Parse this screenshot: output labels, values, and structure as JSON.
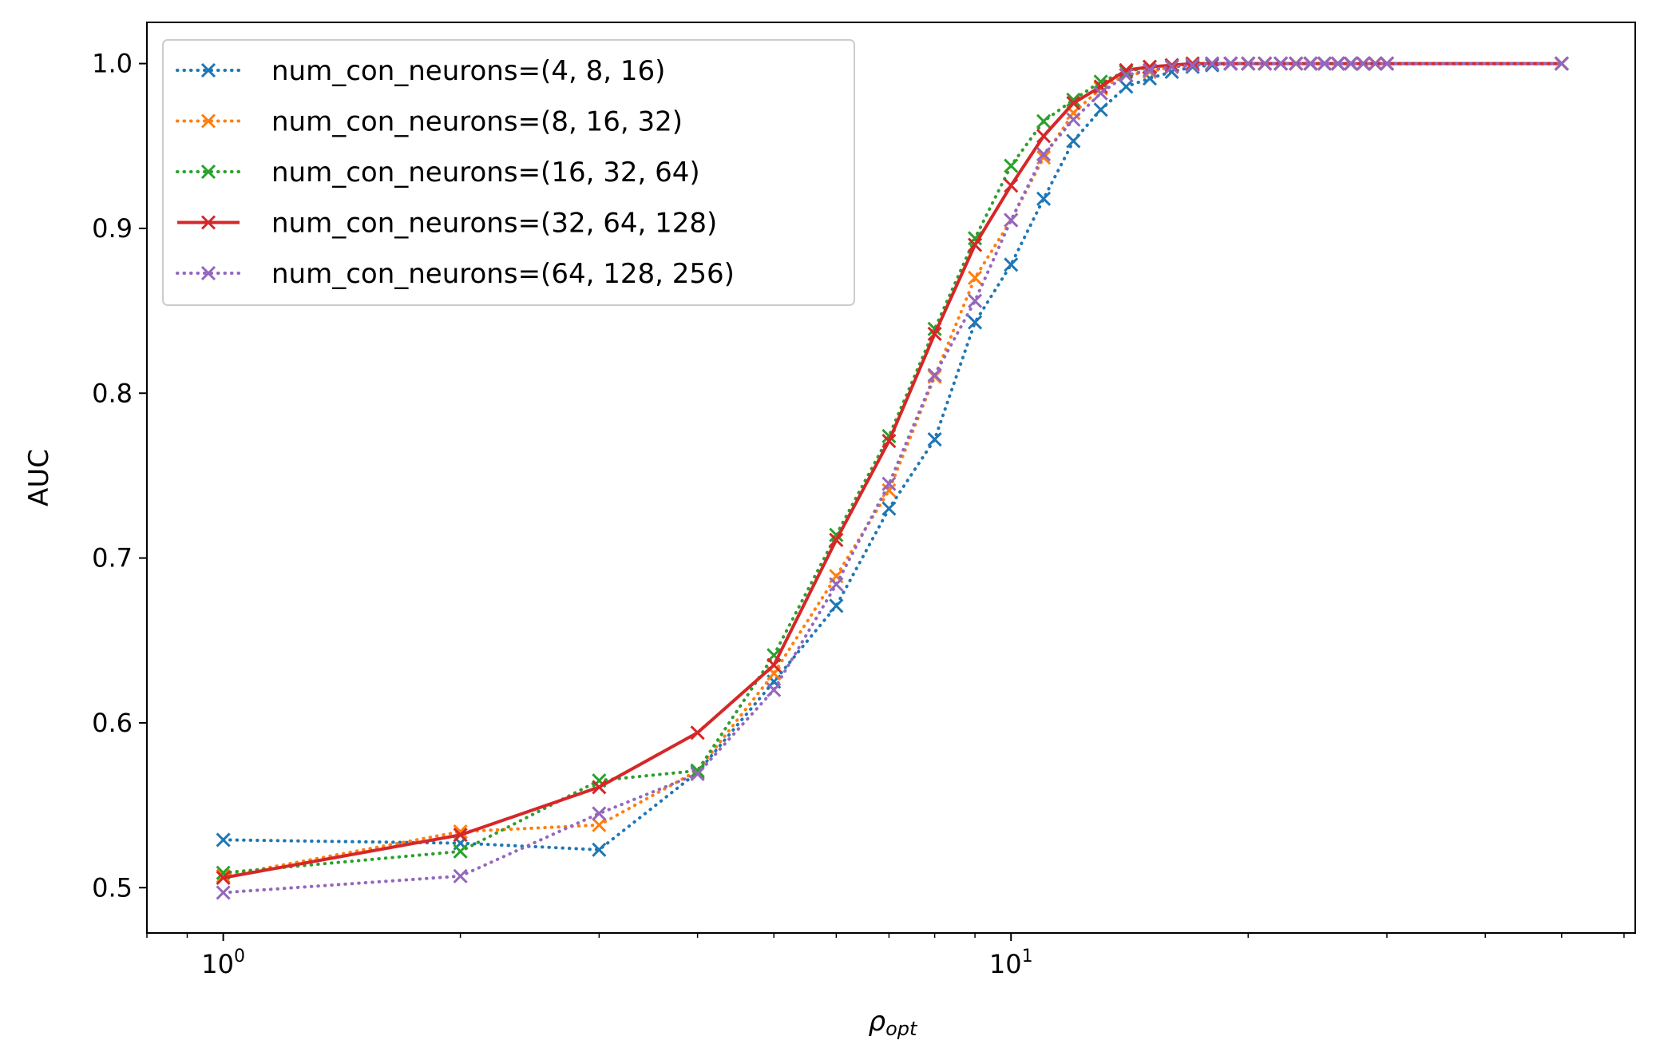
{
  "chart_data": {
    "type": "line",
    "x_scale": "log",
    "xlim": [
      0.8,
      62
    ],
    "ylim": [
      0.4725,
      1.025
    ],
    "xlabel": "ρ",
    "xlabel_subscript": "opt",
    "ylabel": "AUC",
    "x_ticks": [
      {
        "value": 1,
        "base": "10",
        "exp": "0"
      },
      {
        "value": 10,
        "base": "10",
        "exp": "1"
      }
    ],
    "y_ticks": [
      {
        "value": 0.5,
        "label": "0.5"
      },
      {
        "value": 0.6,
        "label": "0.6"
      },
      {
        "value": 0.7,
        "label": "0.7"
      },
      {
        "value": 0.8,
        "label": "0.8"
      },
      {
        "value": 0.9,
        "label": "0.9"
      },
      {
        "value": 1.0,
        "label": "1.0"
      }
    ],
    "grid": false,
    "legend_position": "top-left",
    "series": [
      {
        "name": "num_con_neurons=(4, 8, 16)",
        "color": "#1f77b4",
        "linestyle": "dotted",
        "marker": "x",
        "x": [
          1,
          2,
          3,
          4,
          5,
          6,
          7,
          8,
          9,
          10,
          11,
          12,
          13,
          14,
          15,
          16,
          17,
          18,
          19,
          20,
          21,
          22,
          23,
          24,
          25,
          26,
          27,
          28,
          29,
          30,
          50
        ],
        "y": [
          0.529,
          0.527,
          0.523,
          0.57,
          0.625,
          0.671,
          0.73,
          0.772,
          0.843,
          0.878,
          0.918,
          0.953,
          0.972,
          0.986,
          0.991,
          0.995,
          0.998,
          0.999,
          1.0,
          1.0,
          1.0,
          1.0,
          1.0,
          1.0,
          1.0,
          1.0,
          1.0,
          1.0,
          1.0,
          1.0,
          1.0
        ]
      },
      {
        "name": "num_con_neurons=(8, 16, 32)",
        "color": "#ff7f0e",
        "linestyle": "dotted",
        "marker": "x",
        "x": [
          1,
          2,
          3,
          4,
          5,
          6,
          7,
          8,
          9,
          10,
          11,
          12,
          13,
          14,
          15,
          16,
          17,
          18,
          19,
          20,
          21,
          22,
          23,
          24,
          25,
          26,
          27,
          28,
          29,
          30,
          50
        ],
        "y": [
          0.507,
          0.534,
          0.538,
          0.571,
          0.63,
          0.689,
          0.741,
          0.81,
          0.87,
          0.905,
          0.943,
          0.97,
          0.985,
          0.993,
          0.995,
          0.998,
          0.999,
          1.0,
          1.0,
          1.0,
          1.0,
          1.0,
          1.0,
          1.0,
          1.0,
          1.0,
          1.0,
          1.0,
          1.0,
          1.0,
          1.0
        ]
      },
      {
        "name": "num_con_neurons=(16, 32, 64)",
        "color": "#2ca02c",
        "linestyle": "dotted",
        "marker": "x",
        "x": [
          1,
          2,
          3,
          4,
          5,
          6,
          7,
          8,
          9,
          10,
          11,
          12,
          13,
          14,
          15,
          16,
          17,
          18,
          19,
          20,
          21,
          22,
          23,
          24,
          25,
          26,
          27,
          28,
          29,
          30,
          50
        ],
        "y": [
          0.509,
          0.522,
          0.565,
          0.571,
          0.641,
          0.714,
          0.774,
          0.839,
          0.894,
          0.938,
          0.965,
          0.978,
          0.989,
          0.995,
          0.998,
          0.999,
          1.0,
          1.0,
          1.0,
          1.0,
          1.0,
          1.0,
          1.0,
          1.0,
          1.0,
          1.0,
          1.0,
          1.0,
          1.0,
          1.0,
          1.0
        ]
      },
      {
        "name": "num_con_neurons=(32, 64, 128)",
        "color": "#d62728",
        "linestyle": "solid",
        "marker": "x",
        "x": [
          1,
          2,
          3,
          4,
          5,
          6,
          7,
          8,
          9,
          10,
          11,
          12,
          13,
          14,
          15,
          16,
          17,
          18,
          19,
          20,
          21,
          22,
          23,
          24,
          25,
          26,
          27,
          28,
          29,
          30,
          50
        ],
        "y": [
          0.506,
          0.532,
          0.561,
          0.594,
          0.635,
          0.711,
          0.771,
          0.836,
          0.89,
          0.926,
          0.956,
          0.976,
          0.986,
          0.996,
          0.998,
          0.999,
          1.0,
          1.0,
          1.0,
          1.0,
          1.0,
          1.0,
          1.0,
          1.0,
          1.0,
          1.0,
          1.0,
          1.0,
          1.0,
          1.0,
          1.0
        ]
      },
      {
        "name": "num_con_neurons=(64, 128, 256)",
        "color": "#9467bd",
        "linestyle": "dotted",
        "marker": "x",
        "x": [
          1,
          2,
          3,
          4,
          5,
          6,
          7,
          8,
          9,
          10,
          11,
          12,
          13,
          14,
          15,
          16,
          17,
          18,
          19,
          20,
          21,
          22,
          23,
          24,
          25,
          26,
          27,
          28,
          29,
          30,
          50
        ],
        "y": [
          0.497,
          0.507,
          0.545,
          0.569,
          0.62,
          0.684,
          0.745,
          0.811,
          0.856,
          0.905,
          0.945,
          0.966,
          0.982,
          0.993,
          0.996,
          0.998,
          0.999,
          1.0,
          1.0,
          1.0,
          1.0,
          1.0,
          1.0,
          1.0,
          1.0,
          1.0,
          1.0,
          1.0,
          1.0,
          1.0,
          1.0
        ]
      }
    ]
  }
}
